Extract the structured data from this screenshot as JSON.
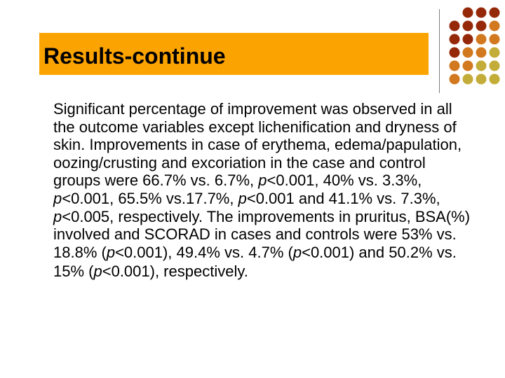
{
  "slide": {
    "title": "Results-continue",
    "accent_colors": {
      "title_bar": "#fba300",
      "dot_dark": "#96280a",
      "dot_mid": "#d2781e",
      "dot_light": "#c3ad38",
      "divider": "#7f7f7f"
    },
    "body": {
      "segments": [
        {
          "text": "Significant percentage of improvement was observed in all the outcome variables except lichenification and dryness of skin. Improvements in case of erythema, edema/papulation, oozing/crusting and excoriation in the case and control groups were 66.7% vs. 6.7%, ",
          "italic": false
        },
        {
          "text": "p",
          "italic": true
        },
        {
          "text": "<0.001, 40% vs. 3.3%, ",
          "italic": false
        },
        {
          "text": "p",
          "italic": true
        },
        {
          "text": "<0.001, 65.5% vs.17.7%, ",
          "italic": false
        },
        {
          "text": "p",
          "italic": true
        },
        {
          "text": "<0.001 and 41.1% vs. 7.3%, ",
          "italic": false
        },
        {
          "text": "p",
          "italic": true
        },
        {
          "text": "<0.005, respectively. The improvements in pruritus, BSA(%) involved and SCORAD in cases and controls were 53% vs. 18.8% (",
          "italic": false
        },
        {
          "text": "p",
          "italic": true
        },
        {
          "text": "<0.001), 49.4% vs. 4.7% (",
          "italic": false
        },
        {
          "text": "p",
          "italic": true
        },
        {
          "text": "<0.001) and 50.2% vs.",
          "italic": false
        }
      ],
      "tail_segments": [
        {
          "text": "15% (",
          "italic": false
        },
        {
          "text": "p",
          "italic": true
        },
        {
          "text": "<0.001), respectively.",
          "italic": false
        }
      ]
    }
  }
}
